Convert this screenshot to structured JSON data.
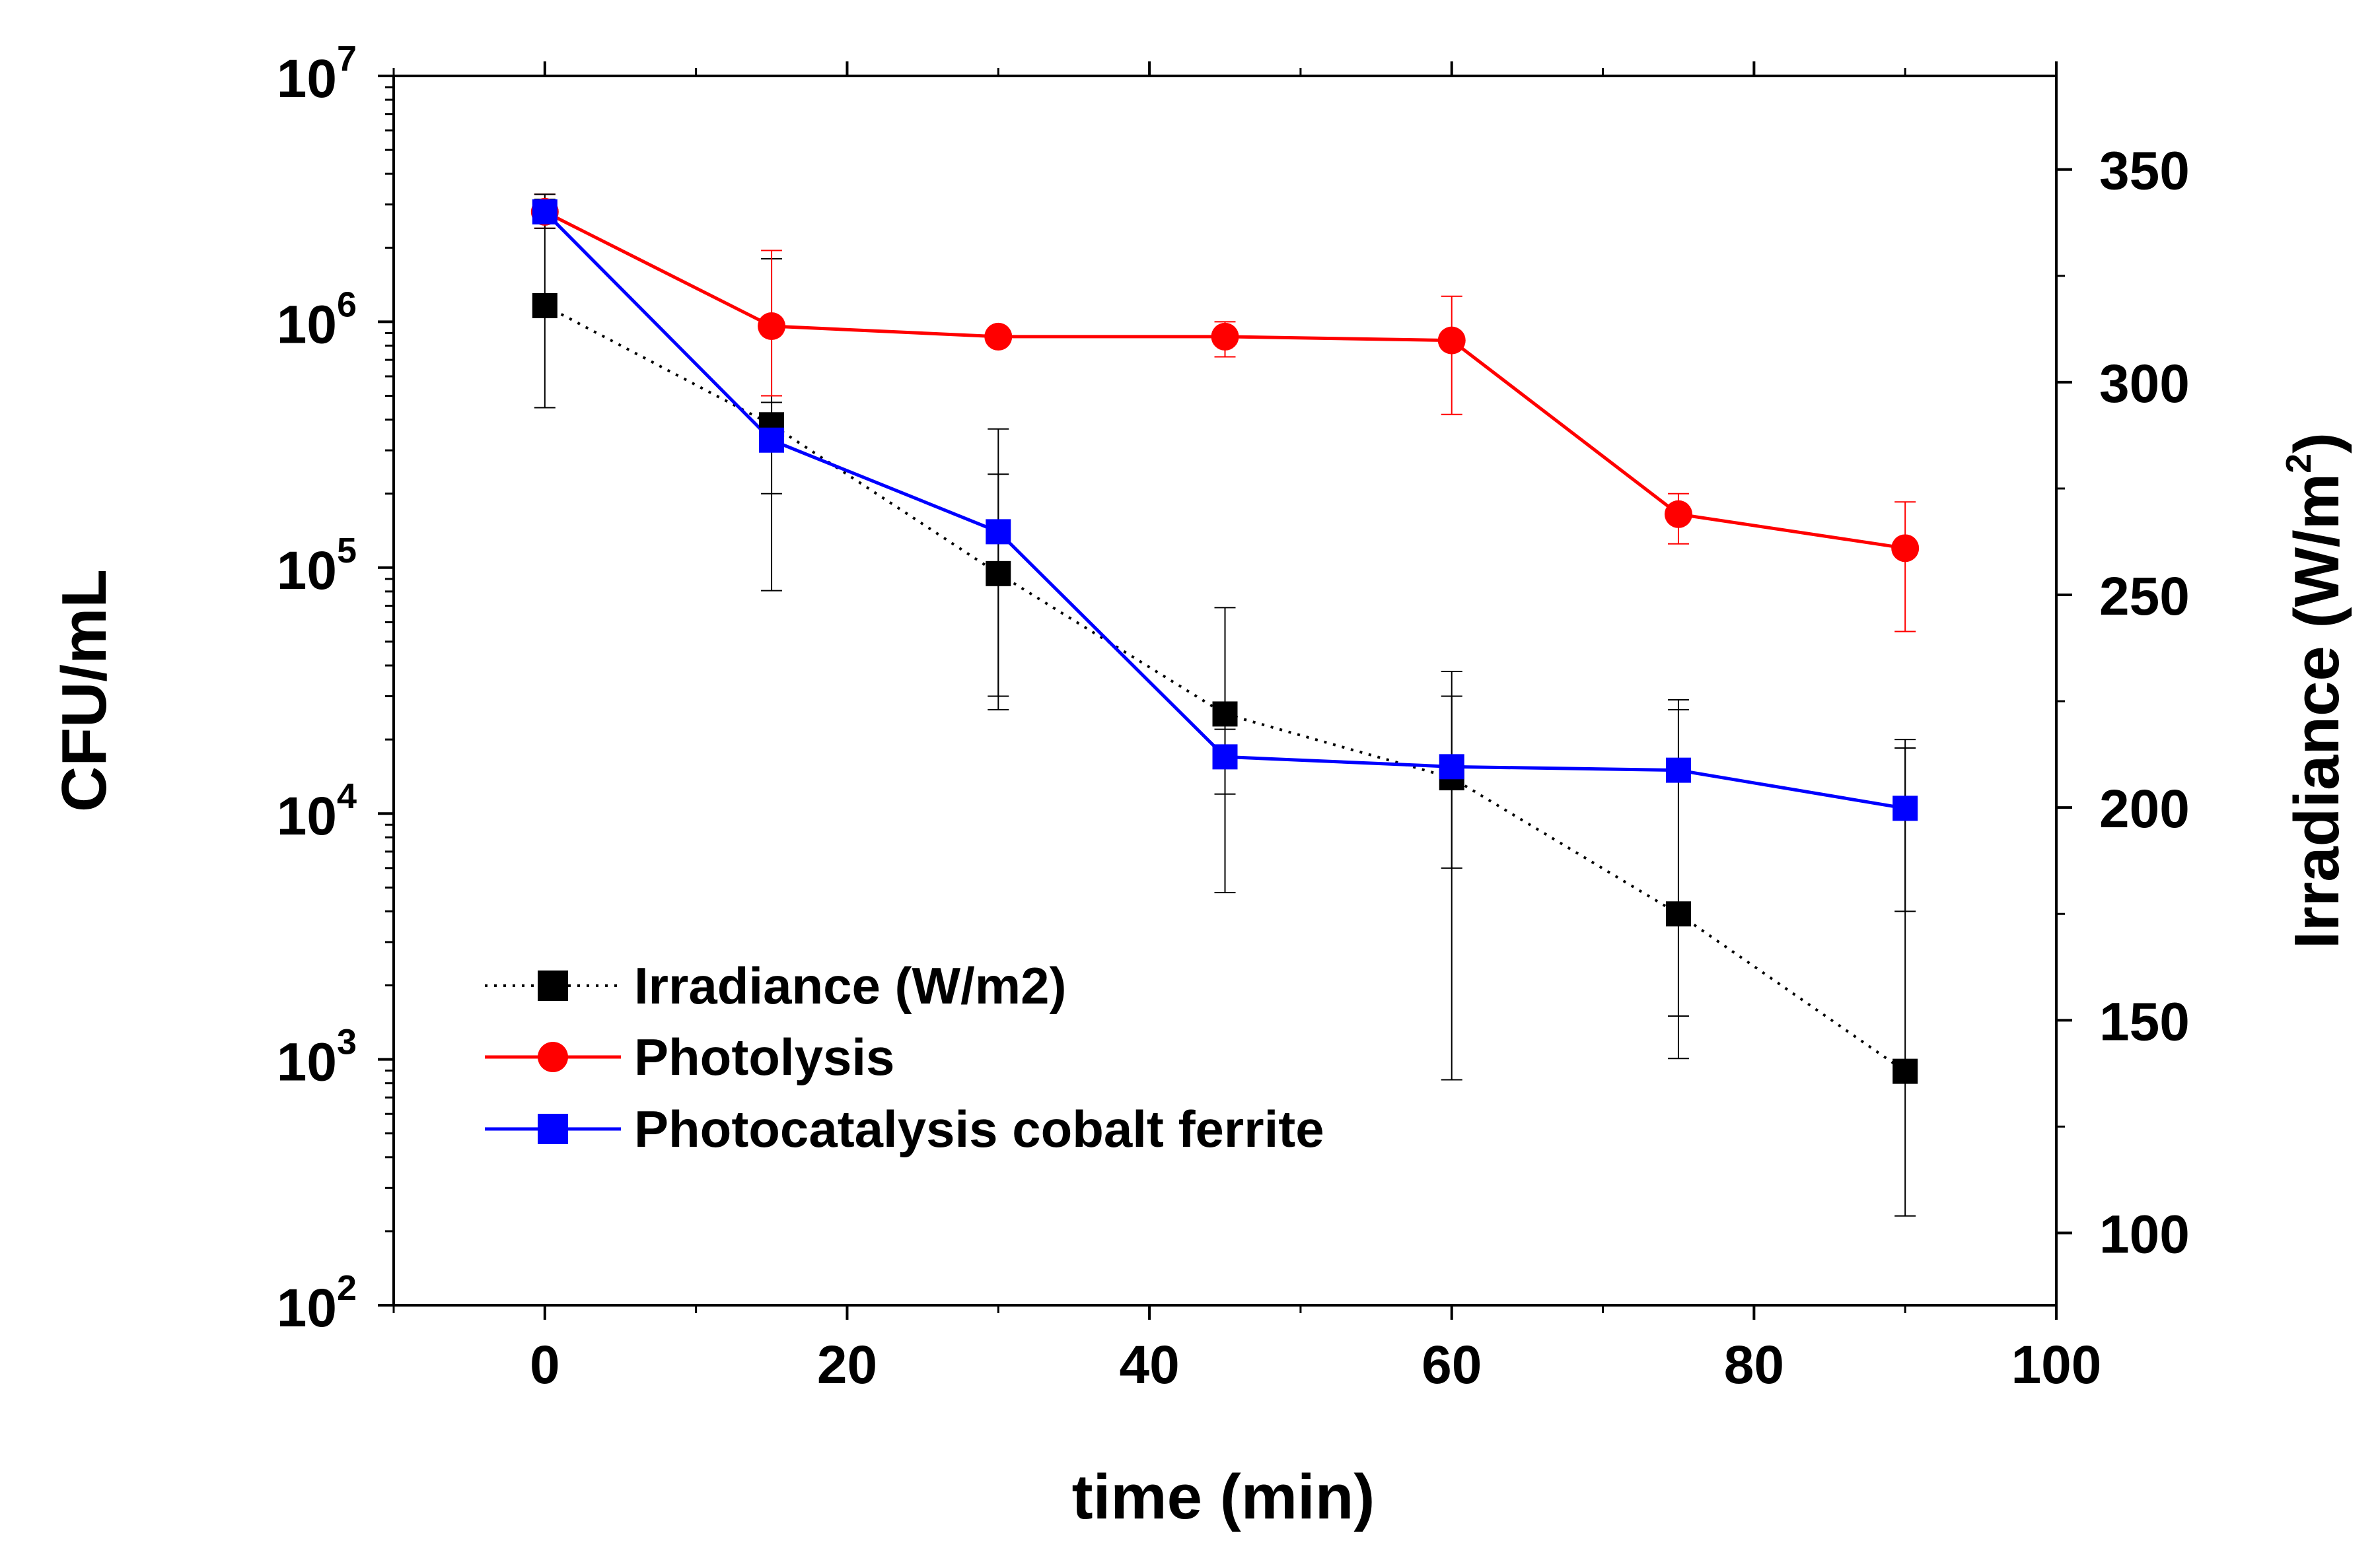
{
  "chart_data": {
    "type": "line",
    "title": "",
    "xlabel": "time (min)",
    "ylabel": "CFU/mL",
    "y2label": "Irradiance (W/m",
    "y2label_sup": "2",
    "y2label_close": ")",
    "xlim": [
      -10,
      100
    ],
    "ylim": [
      100,
      10000000
    ],
    "yscale": "log",
    "y2lim": [
      83,
      372
    ],
    "x_ticks": [
      0,
      20,
      40,
      60,
      80,
      100
    ],
    "x_tick_labels": [
      "0",
      "20",
      "40",
      "60",
      "80",
      "100"
    ],
    "y_ticks": [
      100,
      1000,
      10000,
      100000,
      1000000,
      10000000
    ],
    "y_tick_base": "10",
    "y_tick_exponents": [
      "2",
      "3",
      "4",
      "5",
      "6",
      "7"
    ],
    "y2_ticks": [
      100,
      150,
      200,
      250,
      300,
      350
    ],
    "y2_tick_labels": [
      "100",
      "150",
      "200",
      "250",
      "300",
      "350"
    ],
    "legend_position": "bottom-left",
    "series": [
      {
        "name": "Irradiance (W/m2)",
        "axis": "right",
        "color": "#000000",
        "line_style": "dotted",
        "marker": "square",
        "x": [
          0,
          15,
          30,
          45,
          60,
          75,
          90
        ],
        "values": [
          318,
          290,
          255,
          222,
          207,
          175,
          138
        ],
        "err_low": [
          294,
          251,
          223,
          180,
          136,
          141,
          104
        ],
        "err_high": [
          343,
          329,
          289,
          247,
          232,
          223,
          214
        ]
      },
      {
        "name": "Photolysis",
        "axis": "left",
        "color": "#ff0000",
        "line_style": "solid",
        "marker": "circle",
        "x": [
          0,
          15,
          30,
          45,
          60,
          75,
          90
        ],
        "values": [
          2800000,
          960000,
          870000,
          870000,
          840000,
          165000,
          120000
        ],
        "err_low": [
          2400000,
          500000,
          820000,
          720000,
          420000,
          125000,
          55000
        ],
        "err_high": [
          3300000,
          1950000,
          920000,
          1000000,
          1270000,
          200000,
          185000
        ]
      },
      {
        "name": "Photocatalysis cobalt ferrite",
        "axis": "left",
        "color": "#0000ff",
        "line_style": "solid",
        "marker": "square",
        "x": [
          0,
          15,
          30,
          45,
          60,
          75,
          90
        ],
        "values": [
          2800000,
          330000,
          140000,
          17000,
          15500,
          15000,
          10500
        ],
        "err_low": [
          2400000,
          200000,
          30000,
          12000,
          6000,
          1500,
          4000
        ],
        "err_high": [
          3300000,
          470000,
          240000,
          22000,
          30000,
          29000,
          20000
        ]
      }
    ]
  }
}
